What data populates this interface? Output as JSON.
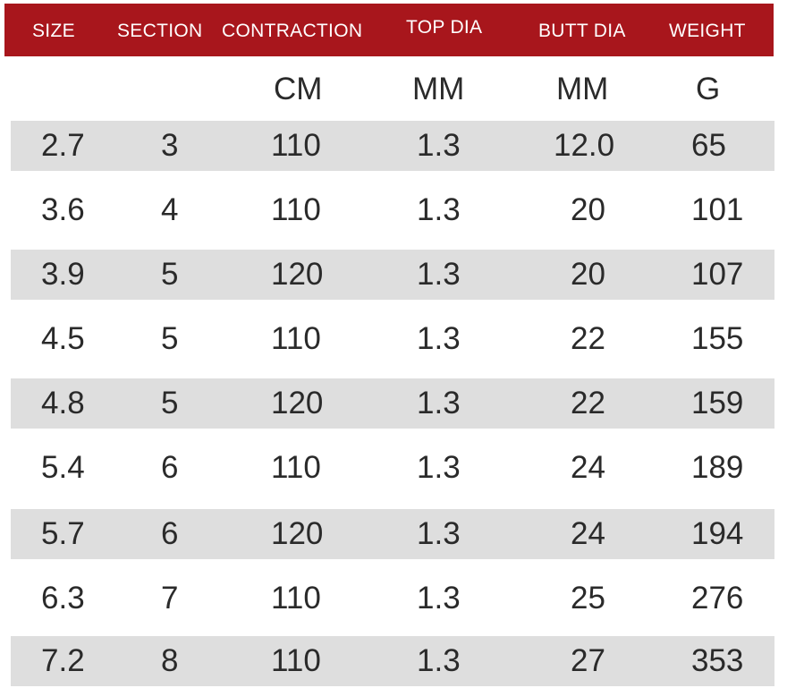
{
  "headers": [
    "SIZE",
    "SECTION",
    "CONTRACTION",
    "TOP DIA",
    "BUTT DIA",
    "WEIGHT"
  ],
  "units": [
    "",
    "",
    "CM",
    "MM",
    "MM",
    "G"
  ],
  "rows": [
    [
      "2.7",
      "3",
      "110",
      "1.3",
      "12.0",
      "65"
    ],
    [
      "3.6",
      "4",
      "110",
      "1.3",
      "20",
      "101"
    ],
    [
      "3.9",
      "5",
      "120",
      "1.3",
      "20",
      "107"
    ],
    [
      "4.5",
      "5",
      "110",
      "1.3",
      "22",
      "155"
    ],
    [
      "4.8",
      "5",
      "120",
      "1.3",
      "22",
      "159"
    ],
    [
      "5.4",
      "6",
      "110",
      "1.3",
      "24",
      "189"
    ],
    [
      "5.7",
      "6",
      "120",
      "1.3",
      "24",
      "194"
    ],
    [
      "6.3",
      "7",
      "110",
      "1.3",
      "25",
      "276"
    ],
    [
      "7.2",
      "8",
      "110",
      "1.3",
      "27",
      "353"
    ]
  ],
  "colors": {
    "header_background": "#a8161c",
    "header_text": "#ffffff",
    "row_shade": "#dedede",
    "body_text": "#2a2a2a"
  }
}
